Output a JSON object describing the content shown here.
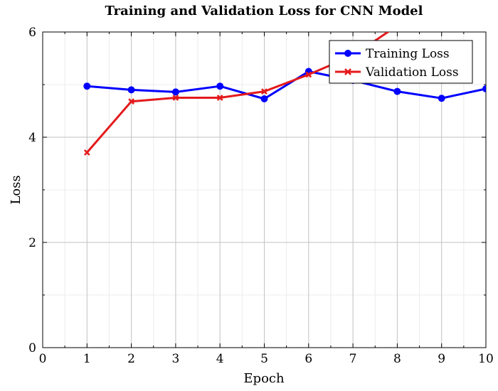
{
  "chart_data": {
    "type": "line",
    "title": "Training and Validation Loss for CNN Model",
    "xlabel": "Epoch",
    "ylabel": "Loss",
    "xlim": [
      0,
      10
    ],
    "ylim": [
      0,
      6
    ],
    "xticks": [
      0,
      1,
      2,
      3,
      4,
      5,
      6,
      7,
      8,
      9,
      10
    ],
    "yticks": [
      0,
      2,
      4,
      6
    ],
    "grid": true,
    "legend_position": "top-right",
    "series": [
      {
        "name": "Training Loss",
        "color": "#0000ff",
        "marker": "circle",
        "x": [
          1,
          2,
          3,
          4,
          5,
          6,
          7,
          8,
          9,
          10
        ],
        "y": [
          4.97,
          4.9,
          4.86,
          4.97,
          4.73,
          5.25,
          5.08,
          4.87,
          4.74,
          4.92
        ]
      },
      {
        "name": "Validation Loss",
        "color": "#e41a1c",
        "marker": "x",
        "x": [
          1,
          2,
          3,
          4,
          5,
          6,
          7,
          8
        ],
        "y": [
          3.71,
          4.68,
          4.75,
          4.75,
          4.87,
          5.19,
          5.55,
          6.12
        ]
      }
    ]
  }
}
